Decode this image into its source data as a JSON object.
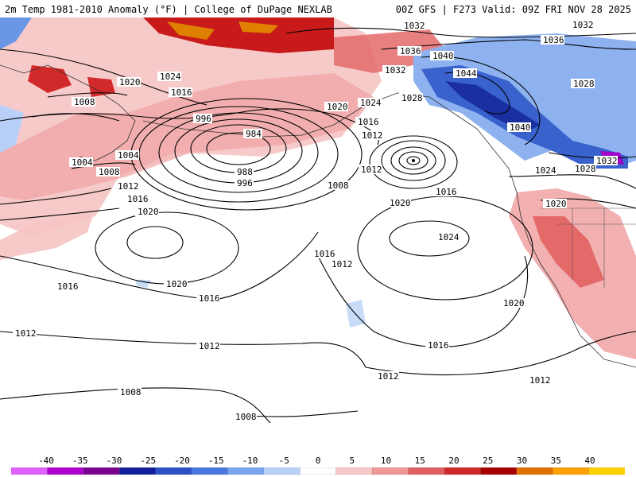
{
  "header": {
    "title_left": "2m Temp 1981-2010 Anomaly (°F) | College of DuPage NEXLAB",
    "title_right": "00Z GFS | F273 Valid: 09Z FRI NOV 28 2025"
  },
  "map": {
    "contour_labels": [
      "1032",
      "1036",
      "1032",
      "1036",
      "1040",
      "1044",
      "1032",
      "1028",
      "1020",
      "1024",
      "1016",
      "1020",
      "1024",
      "1028",
      "1016",
      "1008",
      "996",
      "984",
      "988",
      "996",
      "1004",
      "1004",
      "1008",
      "1012",
      "1016",
      "1012",
      "1008",
      "1012",
      "1016",
      "1020",
      "1020",
      "1040",
      "1032",
      "1024",
      "1028",
      "1020",
      "1024",
      "1016",
      "1012",
      "1020",
      "1016",
      "1020",
      "1016",
      "1012",
      "1012",
      "1016",
      "1012",
      "1012",
      "1008",
      "1008"
    ]
  },
  "colorbar": {
    "ticks": [
      "-40",
      "-35",
      "-30",
      "-25",
      "-20",
      "-15",
      "-10",
      "-5",
      "0",
      "5",
      "10",
      "15",
      "20",
      "25",
      "30",
      "35",
      "40"
    ],
    "colors": [
      "#e060ff",
      "#b000d0",
      "#7a0090",
      "#10209a",
      "#2b50c8",
      "#4a78e0",
      "#78a4f0",
      "#b8d0f8",
      "#ffffff",
      "#f8c8c8",
      "#f09898",
      "#e06060",
      "#d02828",
      "#a80000",
      "#e07000",
      "#ffa000",
      "#ffd000"
    ]
  }
}
